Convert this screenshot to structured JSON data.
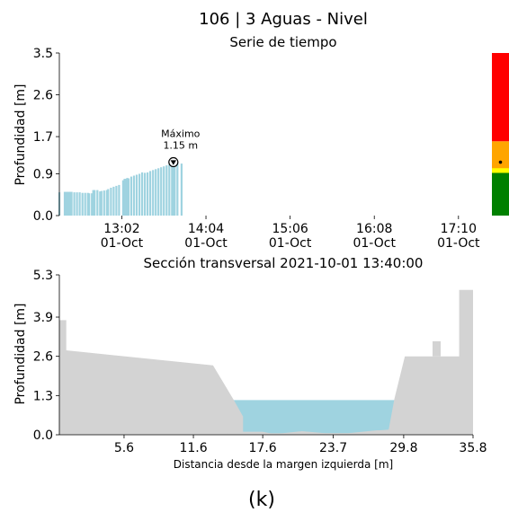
{
  "figure": {
    "title": "106 | 3 Aguas - Nivel",
    "caption": "(k)"
  },
  "chart_data": [
    {
      "type": "bar",
      "title": "Serie de tiempo",
      "ylabel": "Profundidad [m]",
      "xlabel": "",
      "ylim": [
        0,
        3.5
      ],
      "xlim": [
        "2021-10-01 12:16",
        "2021-10-01 17:30"
      ],
      "yticks": [
        "0.0",
        "0.9",
        "1.7",
        "2.6",
        "3.5"
      ],
      "yticks_values": [
        0,
        0.9,
        1.7,
        2.6,
        3.5
      ],
      "xticks": [
        {
          "t": "2021-10-01 13:02",
          "time": "13:02",
          "date": "01-Oct"
        },
        {
          "t": "2021-10-01 14:04",
          "time": "14:04",
          "date": "01-Oct"
        },
        {
          "t": "2021-10-01 15:06",
          "time": "15:06",
          "date": "01-Oct"
        },
        {
          "t": "2021-10-01 16:08",
          "time": "16:08",
          "date": "01-Oct"
        },
        {
          "t": "2021-10-01 17:10",
          "time": "17:10",
          "date": "01-Oct"
        }
      ],
      "bar_color": "#9fd3e0",
      "series": [
        {
          "x": [
            "2021-10-01 12:16",
            "2021-10-01 12:20",
            "2021-10-01 12:21",
            "2021-10-01 12:22",
            "2021-10-01 12:23",
            "2021-10-01 12:24",
            "2021-10-01 12:25",
            "2021-10-01 12:27",
            "2021-10-01 12:29",
            "2021-10-01 12:31",
            "2021-10-01 12:33",
            "2021-10-01 12:35",
            "2021-10-01 12:37",
            "2021-10-01 12:38",
            "2021-10-01 12:40",
            "2021-10-01 12:41",
            "2021-10-01 12:42",
            "2021-10-01 12:44",
            "2021-10-01 12:46",
            "2021-10-01 12:47",
            "2021-10-01 12:49",
            "2021-10-01 12:51",
            "2021-10-01 12:52",
            "2021-10-01 12:54",
            "2021-10-01 12:56",
            "2021-10-01 12:58",
            "2021-10-01 13:00",
            "2021-10-01 13:03",
            "2021-10-01 13:04",
            "2021-10-01 13:05",
            "2021-10-01 13:06",
            "2021-10-01 13:07",
            "2021-10-01 13:09",
            "2021-10-01 13:11",
            "2021-10-01 13:13",
            "2021-10-01 13:15",
            "2021-10-01 13:17",
            "2021-10-01 13:19",
            "2021-10-01 13:21",
            "2021-10-01 13:23",
            "2021-10-01 13:25",
            "2021-10-01 13:27",
            "2021-10-01 13:29",
            "2021-10-01 13:31",
            "2021-10-01 13:33",
            "2021-10-01 13:35",
            "2021-10-01 13:37",
            "2021-10-01 13:39",
            "2021-10-01 13:40",
            "2021-10-01 13:41",
            "2021-10-01 13:43",
            "2021-10-01 13:46"
          ],
          "y": [
            0.5,
            0.51,
            0.51,
            0.51,
            0.51,
            0.51,
            0.51,
            0.5,
            0.5,
            0.5,
            0.49,
            0.49,
            0.49,
            0.48,
            0.48,
            0.55,
            0.55,
            0.55,
            0.52,
            0.53,
            0.54,
            0.55,
            0.57,
            0.6,
            0.62,
            0.64,
            0.66,
            0.76,
            0.79,
            0.79,
            0.81,
            0.8,
            0.84,
            0.86,
            0.88,
            0.9,
            0.93,
            0.92,
            0.93,
            0.96,
            0.98,
            1.0,
            1.02,
            1.04,
            1.06,
            1.08,
            1.1,
            1.12,
            1.15,
            1.13,
            1.14,
            1.12
          ]
        }
      ],
      "annotation": {
        "label": "Máximo",
        "value_text": "1.15 m",
        "x": "2021-10-01 13:40",
        "y": 1.15
      },
      "status_bar": {
        "levels": [
          {
            "from": 0,
            "to": 1.6,
            "color": "#ffa500"
          },
          {
            "from": 1.6,
            "to": 3.5,
            "color": "#ff0000"
          }
        ],
        "yellow": {
          "from": 0.92,
          "to": 1.02,
          "color": "#ffff00"
        },
        "green": {
          "from": 0,
          "to": 0.92,
          "color": "#008000"
        },
        "marker_value": 1.15
      }
    },
    {
      "type": "area",
      "title": "Sección transversal 2021-10-01 13:40:00",
      "xlabel": "Distancia desde la margen izquierda [m]",
      "ylabel": "Profundidad [m]",
      "xlim": [
        0,
        35.8
      ],
      "ylim": [
        0,
        5.3
      ],
      "xticks": [
        "5.6",
        "11.6",
        "17.6",
        "23.7",
        "29.8",
        "35.8"
      ],
      "xticks_values": [
        5.6,
        11.6,
        17.6,
        23.7,
        29.8,
        35.8
      ],
      "yticks": [
        "0.0",
        "1.3",
        "2.6",
        "3.9",
        "5.3"
      ],
      "yticks_values": [
        0,
        1.3,
        2.6,
        3.9,
        5.3
      ],
      "ground_color": "#d3d3d3",
      "water_color": "#9fd3e0",
      "water_level": 1.15,
      "profile": {
        "x": [
          0,
          0.6,
          0.6,
          13.3,
          15.1,
          15.9,
          15.9,
          17.6,
          18.6,
          21,
          23,
          25,
          27.5,
          27.8,
          28.5,
          29,
          29.9,
          29.9,
          34.6,
          34.6,
          35.5,
          35.8
        ],
        "y": [
          3.8,
          3.8,
          2.8,
          2.3,
          1.15,
          0.6,
          0.1,
          0.1,
          0.02,
          0.12,
          0.05,
          0.05,
          0.15,
          0.15,
          0.17,
          1.2,
          2.6,
          2.6,
          2.6,
          4.8,
          4.8,
          4.8
        ]
      },
      "extra_ground_polygons": [
        {
          "x": [
            32.3,
            32.3,
            33,
            33,
            32.3
          ],
          "y": [
            2.6,
            3.1,
            3.1,
            2.6,
            2.6
          ]
        }
      ]
    }
  ]
}
